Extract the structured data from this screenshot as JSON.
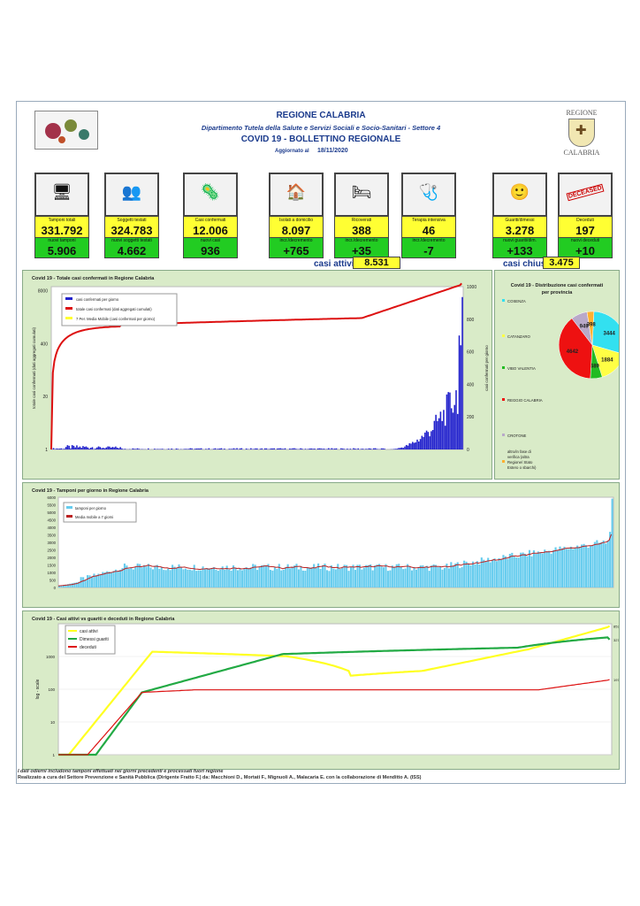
{
  "header": {
    "region": "REGIONE CALABRIA",
    "department": "Dipartimento Tutela della Salute e Servizi Sociali e Socio-Sanitari - Settore 4",
    "title": "COVID 19 - BOLLETTINO REGIONALE",
    "updated_label": "Aggiornato al",
    "date": "18/11/2020",
    "logo_top": "REGIONE",
    "logo_bottom": "CALABRIA"
  },
  "cards": [
    {
      "label": "Tamponi totali",
      "value": "331.792",
      "label2": "nuovi tamponi",
      "value2": "5.906",
      "icon": "lab-computer-icon"
    },
    {
      "label": "Soggetti testati",
      "value": "324.783",
      "label2": "nuovi soggetti testati",
      "value2": "4.662",
      "icon": "crowd-icon"
    },
    {
      "label": "Casi confermati",
      "value": "12.006",
      "label2": "nuovi casi",
      "value2": "936",
      "icon": "virus-people-icon"
    },
    {
      "label": "Isolati a domicilio",
      "value": "8.097",
      "label2": "incr./decremento",
      "value2": "+765",
      "icon": "house-icon"
    },
    {
      "label": "Ricoverati",
      "value": "388",
      "label2": "incr./decremento",
      "value2": "+35",
      "icon": "hospital-bed-icon"
    },
    {
      "label": "Terapia intensiva",
      "value": "46",
      "label2": "incr./decremento",
      "value2": "-7",
      "icon": "icu-bed-icon"
    },
    {
      "label": "Guariti/dimessi",
      "value": "3.278",
      "label2": "nuovi guariti/dim.",
      "value2": "+133",
      "icon": "recovered-icon"
    },
    {
      "label": "Deceduti",
      "value": "197",
      "label2": "nuovi deceduti",
      "value2": "+10",
      "icon": "deceased-stamp-icon",
      "stamp": "DECEASED"
    }
  ],
  "summary": {
    "active_label": "casi attivi",
    "active_value": "8.531",
    "closed_label": "casi chiusi",
    "closed_value": "3.475"
  },
  "chart_data": [
    {
      "type": "bar",
      "title": "Covid 19 - Totale casi confermati in Regione Calabria",
      "ylabel": "totale casi confermati (dati aggregati cumulati)",
      "y2label": "casi confermati per giorno",
      "yticks": [
        "1",
        "20",
        "400",
        "8000"
      ],
      "y2ticks": [
        "0",
        "200",
        "400",
        "600",
        "800",
        "1000"
      ],
      "series": [
        {
          "name": "casi confermati per giorno",
          "color": "#2222cc"
        },
        {
          "name": "totale casi confermati (dati aggregati cumulati)",
          "color": "#dd1111"
        },
        {
          "name": "7 Per. Media Mobile (casi confermati per giorno)",
          "color": "#ffff33"
        }
      ],
      "daily_latest": 936,
      "total_latest": 12006
    },
    {
      "type": "pie",
      "title": "Covid 19 - Distribuzione casi confermati per provincia",
      "categories": [
        "COSENZA",
        "CATANZARO",
        "VIBO VALENTIA",
        "REGGIO CALABRIA",
        "CROTONE",
        "altro/in fase di verifica (altra Regione/ Stato Estero o sbarchi)"
      ],
      "values": [
        3444,
        1884,
        689,
        4642,
        949,
        398
      ],
      "colors": [
        "#33e0f0",
        "#ffff44",
        "#22bb22",
        "#ee1111",
        "#b9a9c9",
        "#ffb030"
      ]
    },
    {
      "type": "bar",
      "title": "Covid 19 - Tamponi per giorno in Regione Calabria",
      "yticks": [
        "0",
        "500",
        "1000",
        "1500",
        "2000",
        "2500",
        "3000",
        "3500",
        "4000",
        "4500",
        "5000",
        "5500",
        "6000"
      ],
      "series": [
        {
          "name": "tamponi per giorno",
          "color": "#66ccee"
        },
        {
          "name": "Media mobile a 7 giorni",
          "color": "#bb2222"
        }
      ],
      "latest": 5906
    },
    {
      "type": "line",
      "title": "Covid 19 - Casi attivi vs guariti e deceduti in Regione Calabria",
      "ylabel": "log - scale",
      "yticks": [
        "1",
        "10",
        "100",
        "1000"
      ],
      "series": [
        {
          "name": "casi attivi",
          "color": "#ffff22",
          "last": "8531"
        },
        {
          "name": "Dimessi guariti",
          "color": "#22aa44",
          "last": "3278"
        },
        {
          "name": "deceduti",
          "color": "#dd1111",
          "last": "197"
        }
      ]
    }
  ],
  "footer": {
    "note": "I dati odierni includono tamponi effettuati nei giorni precedenti e processati fuori regione",
    "credits": "Realizzato a cura del Settore Prevenzione e Sanità Pubblica (Dirigente Fratto F.) da: Macchioni D., Mortati F., Mignuoli A., Malacaria E. con la collaborazione di Menditto A. (ISS)"
  }
}
